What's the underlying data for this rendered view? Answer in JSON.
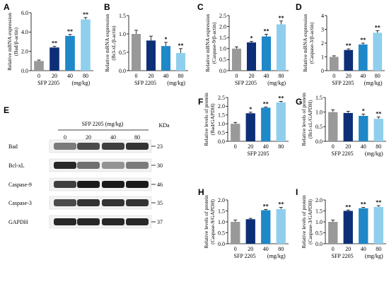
{
  "colors": [
    "#999999",
    "#0d2f78",
    "#1f88c8",
    "#8fcfed"
  ],
  "chart_data": [
    {
      "id": "A",
      "type": "bar",
      "categories": [
        "0",
        "20",
        "40",
        "80"
      ],
      "values": [
        1.0,
        2.4,
        3.6,
        5.3
      ],
      "errors": [
        0.1,
        0.12,
        0.15,
        0.2
      ],
      "significance": [
        "",
        "**",
        "**",
        "**"
      ],
      "ylabel": "Relative mRNA expression\n(Bad/β-actin)",
      "ylim": [
        0,
        6
      ],
      "yticks": [
        "0.0",
        "2.0",
        "4.0",
        "6.0"
      ],
      "ytick_values": [
        0,
        2,
        4,
        6
      ],
      "xlabel": "SFP 2205",
      "xunit": "(mg/kg)"
    },
    {
      "id": "B",
      "type": "bar",
      "categories": [
        "0",
        "20",
        "40",
        "80"
      ],
      "values": [
        1.0,
        0.82,
        0.67,
        0.48
      ],
      "errors": [
        0.1,
        0.12,
        0.1,
        0.12
      ],
      "significance": [
        "",
        "",
        "*",
        "**"
      ],
      "ylabel": "Relative mRNA expression\n(Bcl-xL/β-actin)",
      "ylim": [
        0,
        1.5
      ],
      "yticks": [
        "0.0",
        "0.5",
        "1.0",
        "1.5"
      ],
      "ytick_values": [
        0,
        0.5,
        1.0,
        1.5
      ],
      "xlabel": "SFP 2205",
      "xunit": "(mg/kg)"
    },
    {
      "id": "C",
      "type": "bar",
      "categories": [
        "0",
        "20",
        "40",
        "80"
      ],
      "values": [
        1.0,
        1.28,
        1.55,
        2.1
      ],
      "errors": [
        0.08,
        0.05,
        0.1,
        0.15
      ],
      "significance": [
        "",
        "*",
        "**",
        "**"
      ],
      "ylabel": "Relative mRNA expression\n(Caspase-9/β-actin)",
      "ylim": [
        0,
        2.5
      ],
      "yticks": [
        "0.0",
        "0.5",
        "1.0",
        "1.5",
        "2.0",
        "2.5"
      ],
      "ytick_values": [
        0,
        0.5,
        1.0,
        1.5,
        2.0,
        2.5
      ],
      "xlabel": "SFP 2205",
      "xunit": "(mg/kg)"
    },
    {
      "id": "D",
      "type": "bar",
      "categories": [
        "0",
        "20",
        "40",
        "80"
      ],
      "values": [
        1.0,
        1.5,
        1.9,
        2.75
      ],
      "errors": [
        0.08,
        0.08,
        0.1,
        0.15
      ],
      "significance": [
        "",
        "**",
        "**",
        "**"
      ],
      "ylabel": "Relative mRNA expression\n(Caspase-3/β-actin)",
      "ylim": [
        0,
        4
      ],
      "yticks": [
        "0",
        "1",
        "2",
        "3",
        "4"
      ],
      "ytick_values": [
        0,
        1,
        2,
        3,
        4
      ],
      "xlabel": "SFP 2205",
      "xunit": "(mg/kg)"
    },
    {
      "id": "F",
      "type": "bar",
      "categories": [
        "0",
        "20",
        "40",
        "80"
      ],
      "values": [
        1.0,
        1.6,
        1.92,
        2.22
      ],
      "errors": [
        0.08,
        0.06,
        0.04,
        0.06
      ],
      "significance": [
        "",
        "*",
        "**",
        "**"
      ],
      "ylabel": "Relative levels of protein\n(Bad/GAPDH)",
      "ylim": [
        0,
        2.5
      ],
      "yticks": [
        "0.0",
        "0.5",
        "1.0",
        "1.5",
        "2.0",
        "2.5"
      ],
      "ytick_values": [
        0,
        0.5,
        1.0,
        1.5,
        2.0,
        2.5
      ],
      "xlabel": "SFP 2205",
      "xunit": ""
    },
    {
      "id": "G",
      "type": "bar",
      "categories": [
        "0",
        "20",
        "40",
        "80"
      ],
      "values": [
        1.0,
        0.97,
        0.87,
        0.77
      ],
      "errors": [
        0.08,
        0.06,
        0.06,
        0.06
      ],
      "significance": [
        "",
        "",
        "*",
        "**"
      ],
      "ylabel": "Relative levels of protein\n(Bcl-xL/GAPDH)",
      "ylim": [
        0,
        1.5
      ],
      "yticks": [
        "0.0",
        "0.5",
        "1.0",
        "1.5"
      ],
      "ytick_values": [
        0,
        0.5,
        1.0,
        1.5
      ],
      "xlabel": "SFP 2205",
      "xunit": "(mg/kg)"
    },
    {
      "id": "H",
      "type": "bar",
      "categories": [
        "0",
        "20",
        "40",
        "80"
      ],
      "values": [
        1.0,
        1.12,
        1.53,
        1.58
      ],
      "errors": [
        0.08,
        0.04,
        0.04,
        0.08
      ],
      "significance": [
        "",
        "",
        "**",
        "**"
      ],
      "ylabel": "Relative levels of protein\n(Caspase-9/GAPDH)",
      "ylim": [
        0,
        2.0
      ],
      "yticks": [
        "0.0",
        "0.5",
        "1.0",
        "1.5",
        "2.0"
      ],
      "ytick_values": [
        0,
        0.5,
        1.0,
        1.5,
        2.0
      ],
      "xlabel": "SFP 2205",
      "xunit": "(mg/kg)"
    },
    {
      "id": "I",
      "type": "bar",
      "categories": [
        "0",
        "20",
        "40",
        "80"
      ],
      "values": [
        1.0,
        1.5,
        1.62,
        1.68
      ],
      "errors": [
        0.08,
        0.04,
        0.04,
        0.06
      ],
      "significance": [
        "",
        "**",
        "**",
        "**"
      ],
      "ylabel": "Relative levels of protein\n(Caspase-3/GAPDH)",
      "ylim": [
        0,
        2.0
      ],
      "yticks": [
        "0.0",
        "0.5",
        "1.0",
        "1.5",
        "2.0"
      ],
      "ytick_values": [
        0,
        0.5,
        1.0,
        1.5,
        2.0
      ],
      "xlabel": "SFP 2205",
      "xunit": "(mg/kg)"
    }
  ],
  "blot": {
    "letter": "E",
    "header": "SFP 2205 (mg/kg)",
    "unit": "KDa",
    "lanes": [
      "0",
      "20",
      "40",
      "80"
    ],
    "rows": [
      {
        "label": "Bad",
        "kda": "23",
        "intensity": [
          0.55,
          0.75,
          0.8,
          0.85
        ]
      },
      {
        "label": "Bcl-xL",
        "kda": "30",
        "intensity": [
          0.9,
          0.6,
          0.45,
          0.55
        ]
      },
      {
        "label": "Caspase-9",
        "kda": "46",
        "intensity": [
          0.8,
          0.95,
          0.95,
          0.95
        ]
      },
      {
        "label": "Caspase-3",
        "kda": "35",
        "intensity": [
          0.75,
          0.85,
          0.85,
          0.85
        ]
      },
      {
        "label": "GAPDH",
        "kda": "37",
        "intensity": [
          0.9,
          0.9,
          0.9,
          0.9
        ]
      }
    ]
  }
}
